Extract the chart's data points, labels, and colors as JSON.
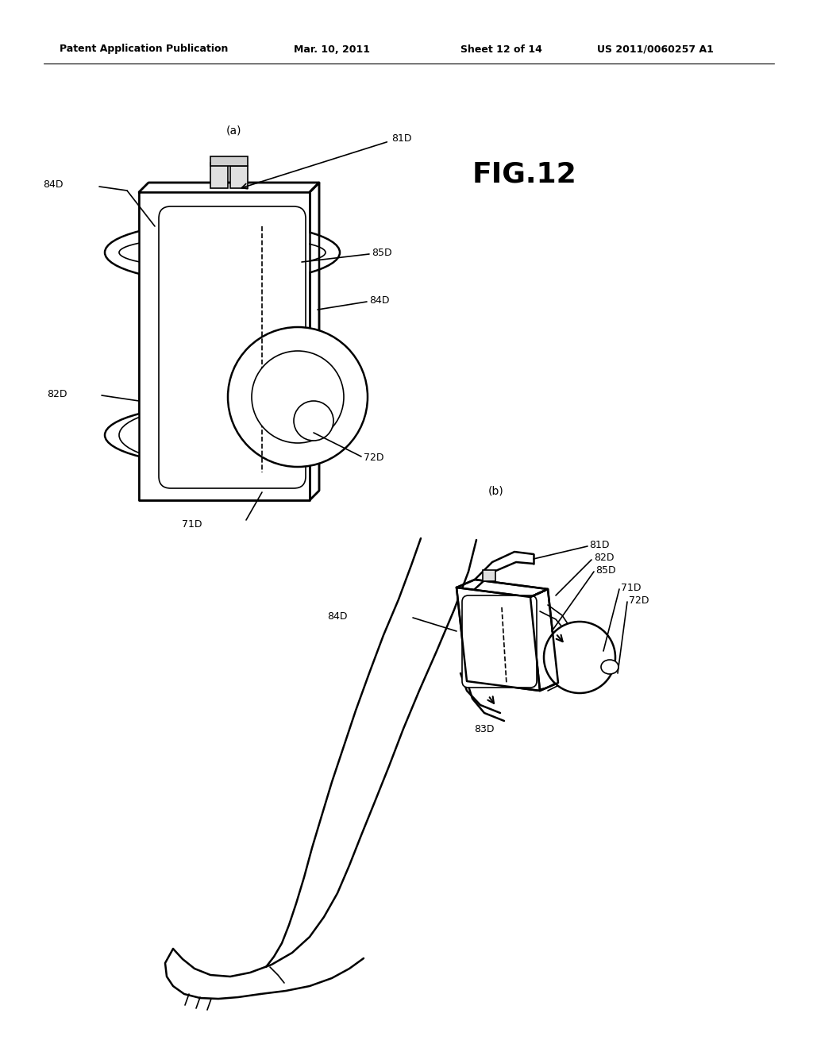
{
  "bg_color": "#ffffff",
  "line_color": "#000000",
  "fig_width": 10.24,
  "fig_height": 13.2,
  "header_left": "Patent Application Publication",
  "header_date": "Mar. 10, 2011",
  "header_sheet": "Sheet 12 of 14",
  "header_patent": "US 2011/0060257 A1",
  "fig_label": "FIG.12",
  "label_a": "(a)",
  "label_b": "(b)",
  "ref_fontsize": 9,
  "fig_label_fontsize": 26,
  "header_fontsize": 9
}
